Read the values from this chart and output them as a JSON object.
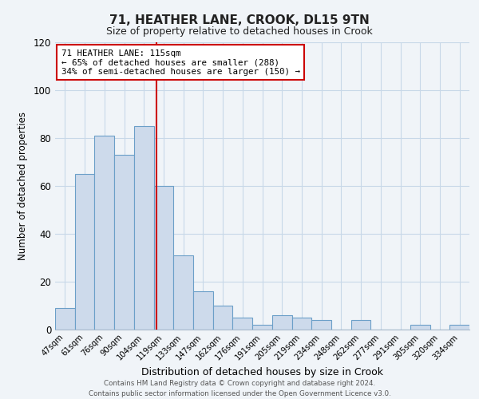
{
  "title": "71, HEATHER LANE, CROOK, DL15 9TN",
  "subtitle": "Size of property relative to detached houses in Crook",
  "xlabel": "Distribution of detached houses by size in Crook",
  "ylabel": "Number of detached properties",
  "bar_labels": [
    "47sqm",
    "61sqm",
    "76sqm",
    "90sqm",
    "104sqm",
    "119sqm",
    "133sqm",
    "147sqm",
    "162sqm",
    "176sqm",
    "191sqm",
    "205sqm",
    "219sqm",
    "234sqm",
    "248sqm",
    "262sqm",
    "277sqm",
    "291sqm",
    "305sqm",
    "320sqm",
    "334sqm"
  ],
  "bar_values": [
    9,
    65,
    81,
    73,
    85,
    60,
    31,
    16,
    10,
    5,
    2,
    6,
    5,
    4,
    0,
    4,
    0,
    0,
    2,
    0,
    2
  ],
  "bar_color": "#cddaeb",
  "bar_edgecolor": "#6b9fc8",
  "ylim": [
    0,
    120
  ],
  "yticks": [
    0,
    20,
    40,
    60,
    80,
    100,
    120
  ],
  "vline_x": 4.62,
  "vline_color": "#cc0000",
  "annotation_text": "71 HEATHER LANE: 115sqm\n← 65% of detached houses are smaller (288)\n34% of semi-detached houses are larger (150) →",
  "annotation_box_color": "#ffffff",
  "annotation_box_edgecolor": "#cc0000",
  "footer_line1": "Contains HM Land Registry data © Crown copyright and database right 2024.",
  "footer_line2": "Contains public sector information licensed under the Open Government Licence v3.0.",
  "bg_color": "#f0f4f8",
  "grid_color": "#c8d8e8",
  "title_fontsize": 11,
  "subtitle_fontsize": 9,
  "ylabel_fontsize": 8.5,
  "xlabel_fontsize": 9
}
